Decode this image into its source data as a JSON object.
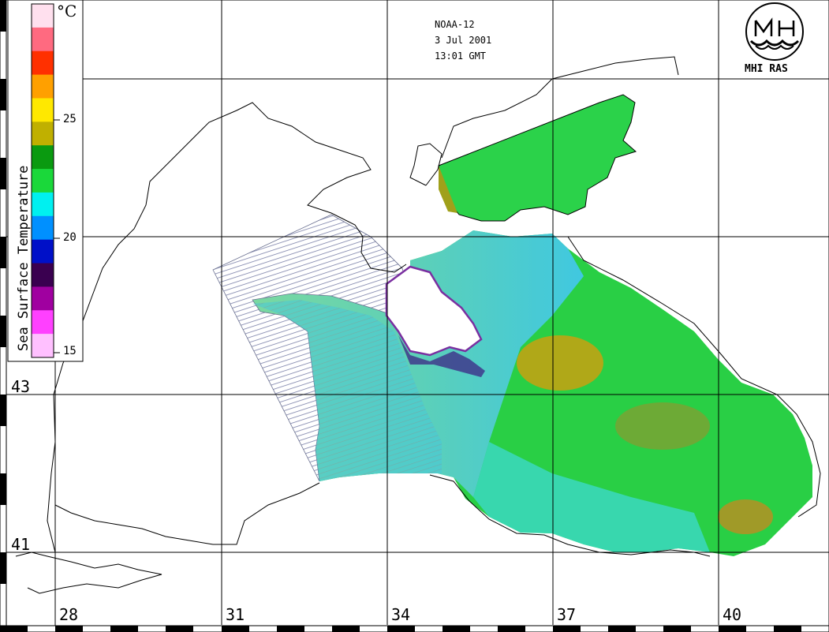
{
  "header": {
    "satellite": "NOAA-12",
    "date": "3 Jul 2001",
    "time": "13:01 GMT"
  },
  "logo": {
    "name": "mhi-logo-icon",
    "text": "MHI RAS"
  },
  "colorbar": {
    "title": "Sea Surface Temperature",
    "unit": "°C",
    "ticks": [
      "25",
      "20",
      "15"
    ],
    "colors": [
      "#ffe0ee",
      "#ff6a80",
      "#ff3000",
      "#ffa000",
      "#ffe800",
      "#c0b000",
      "#0a9a10",
      "#1ad83a",
      "#00f0f0",
      "#0090ff",
      "#0010c8",
      "#3a0050",
      "#a000a0",
      "#ff40ff",
      "#ffc0ff"
    ]
  },
  "grid": {
    "lon_labels": [
      "28",
      "31",
      "34",
      "37",
      "40"
    ],
    "lat_labels": [
      "43",
      "41"
    ]
  },
  "colors": {
    "sst_cool": "#40d8f0",
    "sst_mid": "#22c93a",
    "sst_warm": "#a0a01a",
    "cloud": "#ffffff",
    "coastline": "#000000"
  }
}
